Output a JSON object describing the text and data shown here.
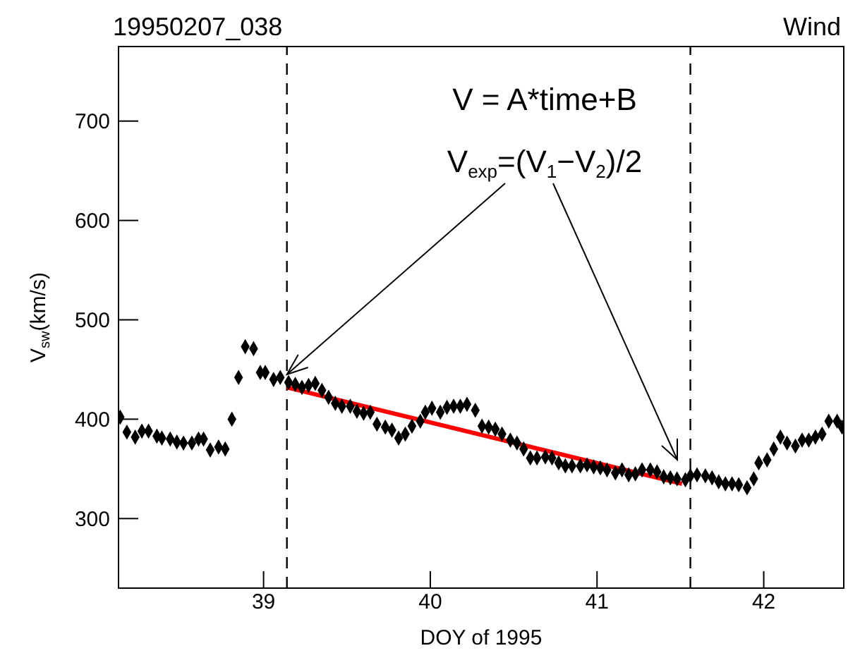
{
  "chart_data": {
    "type": "scatter",
    "title": "19950207_038",
    "subtitle": "Wind",
    "xlabel": "DOY of 1995",
    "ylabel": "V$_{sw}$(km/s)",
    "annotations": [
      "V = A*time+B",
      {
        "text": "V$_{exp}$=(V$_{1}$−V$_{2}$)/2",
        "x": 39.14,
        "y": 445
      }
    ],
    "xlim": [
      38.13,
      42.48
    ],
    "xticks": [
      39,
      40,
      41,
      42
    ],
    "ylim": [
      230,
      775
    ],
    "yticks": [
      300,
      400,
      500,
      600,
      700
    ],
    "series": [
      {
        "marker": "diamond",
        "color": "#000000",
        "x": [
          38.14,
          38.18,
          38.23,
          38.27,
          38.31,
          38.36,
          38.39,
          38.44,
          38.48,
          38.52,
          38.57,
          38.61,
          38.64,
          38.68,
          38.73,
          38.77,
          38.81,
          38.85,
          38.89,
          38.94,
          38.98,
          39.01,
          39.06,
          39.1,
          39.15,
          39.19,
          39.23,
          39.27,
          39.31,
          39.35,
          39.39,
          39.43,
          39.47,
          39.52,
          39.56,
          39.6,
          39.64,
          39.68,
          39.73,
          39.77,
          39.81,
          39.85,
          39.89,
          39.94,
          39.97,
          40.01,
          40.06,
          40.1,
          40.14,
          40.18,
          40.22,
          40.27,
          40.31,
          40.35,
          40.39,
          40.43,
          40.48,
          40.52,
          40.56,
          40.6,
          40.64,
          40.69,
          40.73,
          40.77,
          40.81,
          40.85,
          40.9,
          40.94,
          40.98,
          41.02,
          41.06,
          41.11,
          41.15,
          41.19,
          41.23,
          41.27,
          41.32,
          41.36,
          41.4,
          41.44,
          41.48,
          41.53,
          41.56,
          41.6,
          41.65,
          41.69,
          41.73,
          41.77,
          41.81,
          41.85,
          41.9,
          41.94,
          41.97,
          42.02,
          42.06,
          42.1,
          42.14,
          42.19,
          42.23,
          42.27,
          42.31,
          42.35,
          42.39,
          42.44,
          42.47
        ],
        "values": [
          402,
          387,
          382,
          388,
          388,
          383,
          381,
          380,
          377,
          376,
          376,
          380,
          380,
          369,
          372,
          370,
          400,
          442,
          473,
          471,
          447,
          447,
          440,
          442,
          437,
          435,
          432,
          434,
          436,
          429,
          422,
          416,
          413,
          413,
          408,
          406,
          407,
          395,
          392,
          389,
          381,
          385,
          393,
          398,
          407,
          411,
          407,
          412,
          413,
          413,
          415,
          409,
          393,
          392,
          390,
          385,
          379,
          376,
          370,
          361,
          361,
          362,
          361,
          356,
          353,
          353,
          353,
          354,
          352,
          351,
          349,
          346,
          349,
          344,
          345,
          349,
          349,
          347,
          342,
          341,
          340,
          339,
          343,
          344,
          343,
          341,
          337,
          335,
          335,
          334,
          331,
          340,
          356,
          359,
          370,
          382,
          376,
          373,
          379,
          379,
          382,
          385,
          398,
          398,
          392
        ]
      },
      {
        "type": "line",
        "marker": "none",
        "color": "#ff0000",
        "x": [
          39.14,
          41.51
        ],
        "values": [
          432,
          335
        ]
      }
    ],
    "ref_lines": [
      {
        "axis": "x",
        "value": 39.14,
        "color": "#000000",
        "line_style": "dashed"
      },
      {
        "axis": "x",
        "value": 41.56,
        "color": "#000000",
        "line_style": "dashed"
      }
    ]
  }
}
